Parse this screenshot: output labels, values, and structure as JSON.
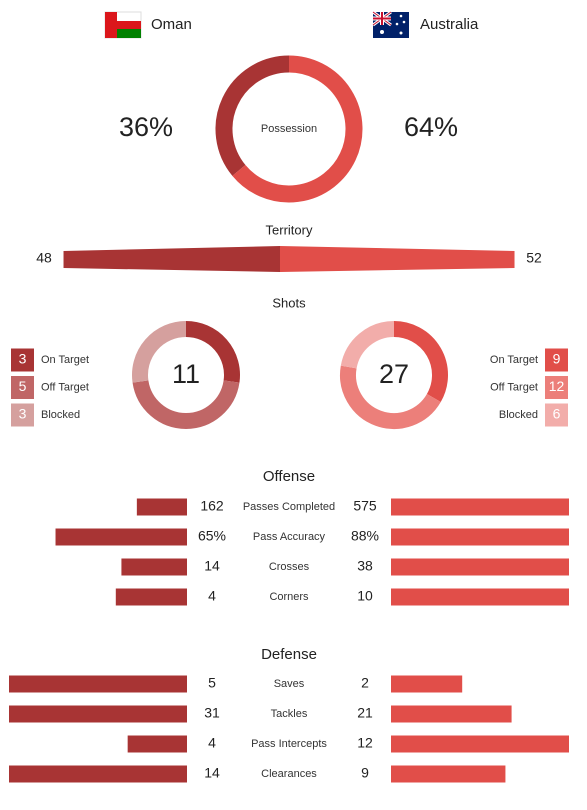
{
  "teams": [
    {
      "name": "Oman",
      "color": "#a83434"
    },
    {
      "name": "Australia",
      "color": "#e14e49"
    }
  ],
  "possession": {
    "label": "Possession",
    "values": [
      36,
      64
    ],
    "value_labels": [
      "36%",
      "64%"
    ]
  },
  "territory": {
    "title": "Territory",
    "values": [
      48,
      52
    ]
  },
  "shots": {
    "title": "Shots",
    "categories": [
      "On Target",
      "Off Target",
      "Blocked"
    ],
    "teams": [
      {
        "total": 11,
        "values": [
          3,
          5,
          3
        ],
        "colors": [
          "#a83434",
          "#c06666",
          "#d5a09e"
        ]
      },
      {
        "total": 27,
        "values": [
          9,
          12,
          6
        ],
        "colors": [
          "#e14e49",
          "#ec7f7a",
          "#f2adaa"
        ]
      }
    ]
  },
  "offense": {
    "title": "Offense",
    "rows": [
      {
        "label": "Passes Completed",
        "values": [
          162,
          575
        ]
      },
      {
        "label": "Pass Accuracy",
        "values": [
          65,
          88
        ],
        "value_labels": [
          "65%",
          "88%"
        ]
      },
      {
        "label": "Crosses",
        "values": [
          14,
          38
        ]
      },
      {
        "label": "Corners",
        "values": [
          4,
          10
        ]
      }
    ]
  },
  "defense": {
    "title": "Defense",
    "rows": [
      {
        "label": "Saves",
        "values": [
          5,
          2
        ]
      },
      {
        "label": "Tackles",
        "values": [
          31,
          21
        ]
      },
      {
        "label": "Pass Intercepts",
        "values": [
          4,
          12
        ]
      },
      {
        "label": "Clearances",
        "values": [
          14,
          9
        ]
      }
    ]
  }
}
